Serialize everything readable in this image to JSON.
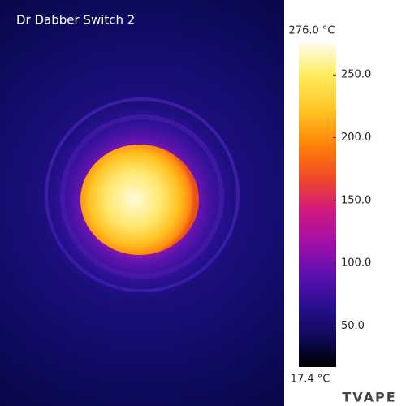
{
  "title": "Dr Dabber Switch 2",
  "colorbar": {
    "max": {
      "value": 276.0,
      "label": "276.0 °C"
    },
    "min": {
      "value": 17.4,
      "label": "17.4 °C"
    },
    "ticks": [
      {
        "value": 250,
        "label": "250.0"
      },
      {
        "value": 200,
        "label": "200.0"
      },
      {
        "value": 150,
        "label": "150.0"
      },
      {
        "value": 100,
        "label": "100.0"
      },
      {
        "value": 50,
        "label": "50.0"
      }
    ]
  },
  "watermark": "TVAPE"
}
